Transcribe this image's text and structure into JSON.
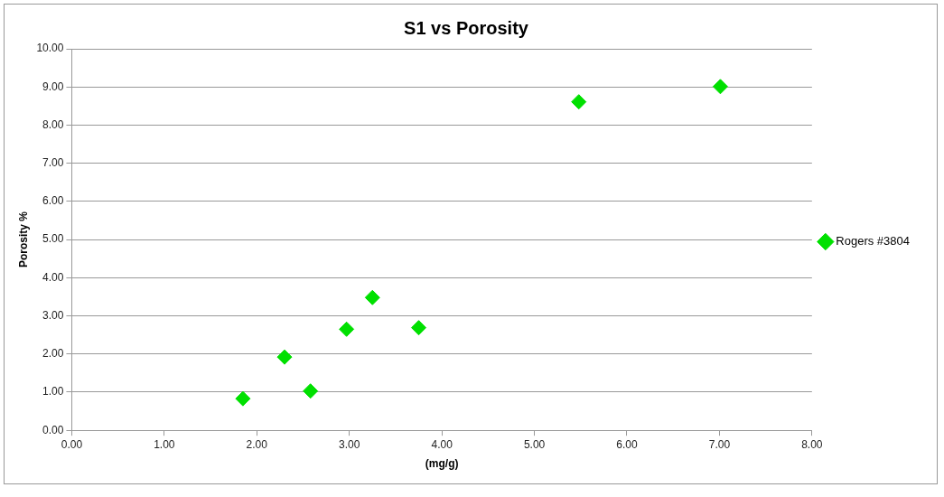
{
  "chart_data": {
    "type": "scatter",
    "title": "S1 vs Porosity",
    "xlabel": "(mg/g)",
    "ylabel": "Porosity %",
    "x": [
      1.85,
      2.3,
      2.58,
      2.97,
      3.25,
      3.75,
      5.48,
      7.01
    ],
    "series": [
      {
        "name": "Rogers #3804",
        "color": "#00e000",
        "values": [
          0.83,
          1.92,
          1.03,
          2.65,
          3.48,
          2.69,
          8.61,
          9.01
        ]
      }
    ],
    "xlim": [
      0,
      8
    ],
    "xticks": [
      {
        "value": 0,
        "label": "0.00"
      },
      {
        "value": 1,
        "label": "1.00"
      },
      {
        "value": 2,
        "label": "2.00"
      },
      {
        "value": 3,
        "label": "3.00"
      },
      {
        "value": 4,
        "label": "4.00"
      },
      {
        "value": 5,
        "label": "5.00"
      },
      {
        "value": 6,
        "label": "6.00"
      },
      {
        "value": 7,
        "label": "7.00"
      },
      {
        "value": 8,
        "label": "8.00"
      }
    ],
    "ylim": [
      0,
      10
    ],
    "yticks": [
      {
        "value": 0,
        "label": "0.00"
      },
      {
        "value": 1,
        "label": "1.00"
      },
      {
        "value": 2,
        "label": "2.00"
      },
      {
        "value": 3,
        "label": "3.00"
      },
      {
        "value": 4,
        "label": "4.00"
      },
      {
        "value": 5,
        "label": "5.00"
      },
      {
        "value": 6,
        "label": "6.00"
      },
      {
        "value": 7,
        "label": "7.00"
      },
      {
        "value": 8,
        "label": "8.00"
      },
      {
        "value": 9,
        "label": "9.00"
      },
      {
        "value": 10,
        "label": "10.00"
      }
    ],
    "grid": "y",
    "legend": "right",
    "marker": "diamond"
  }
}
